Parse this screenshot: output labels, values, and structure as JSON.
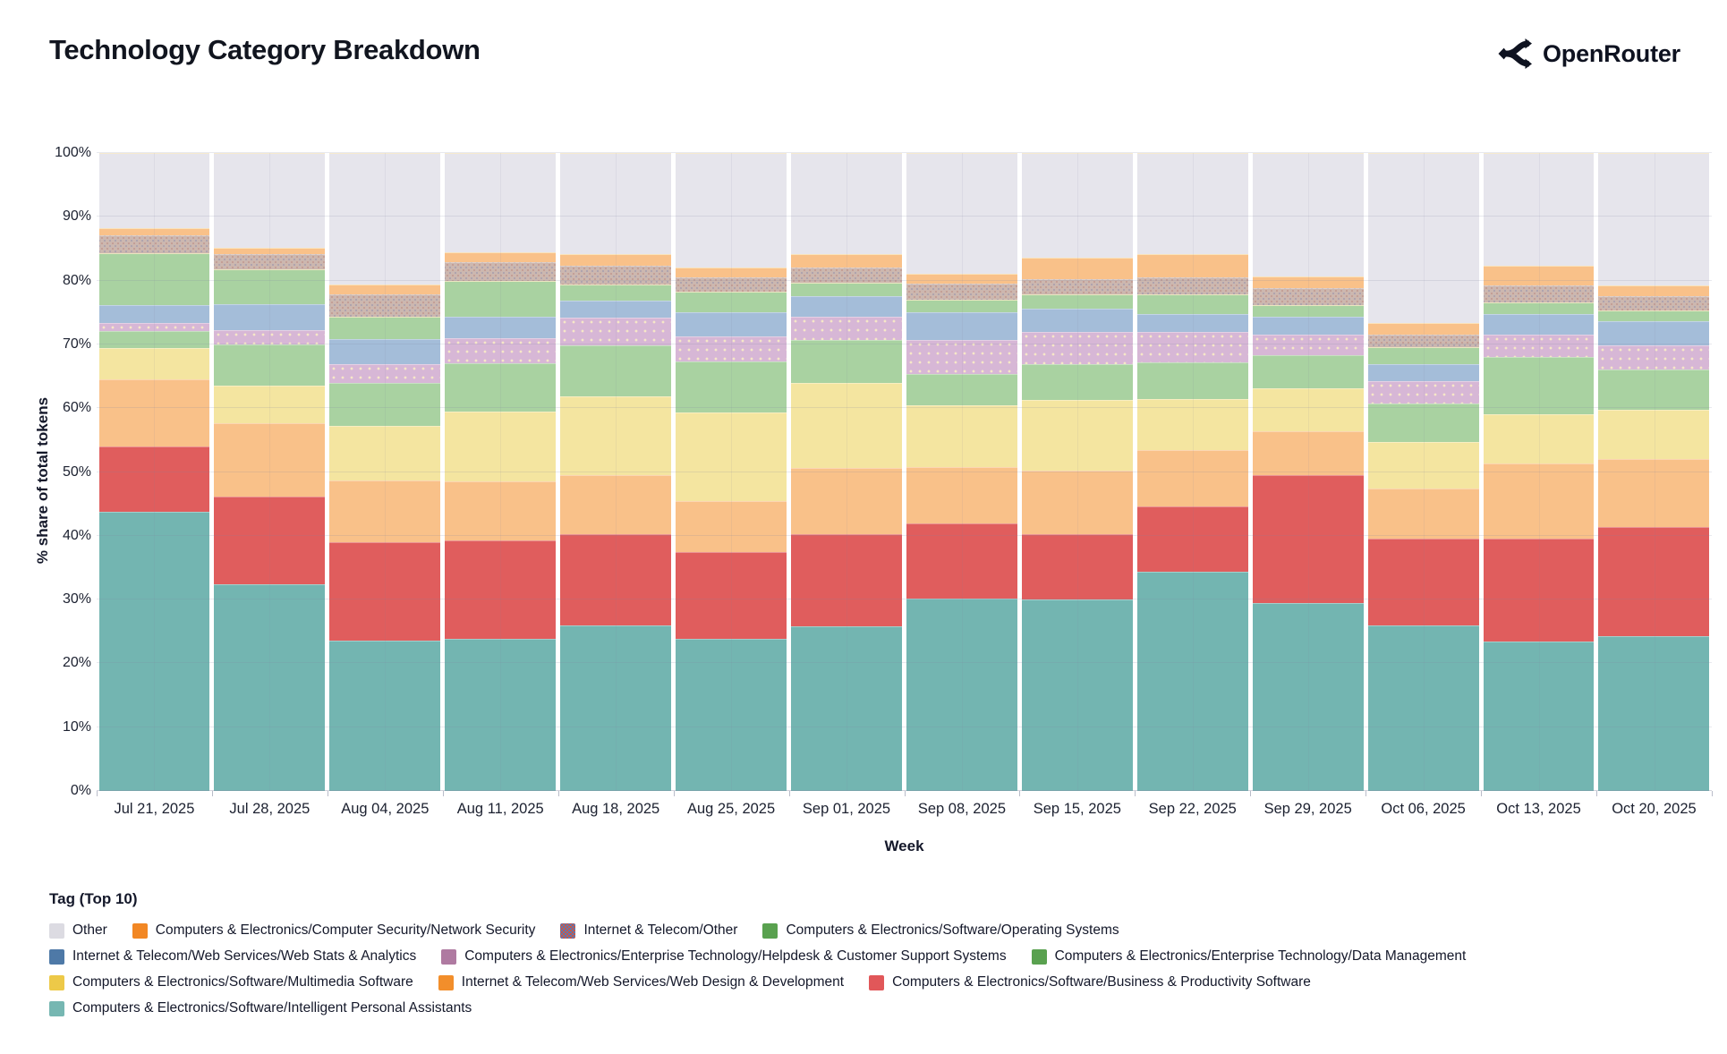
{
  "header": {
    "title": "Technology Category Breakdown",
    "brand": "OpenRouter"
  },
  "chart_data": {
    "type": "bar",
    "subtype": "stacked-100-percent",
    "title": "Technology Category Breakdown",
    "xlabel": "Week",
    "ylabel": "% share of total tokens",
    "legend_title": "Tag (Top 10)",
    "ylim": [
      0,
      100
    ],
    "grid": true,
    "y_ticks": [
      "0%",
      "10%",
      "20%",
      "30%",
      "40%",
      "50%",
      "60%",
      "70%",
      "80%",
      "90%",
      "100%"
    ],
    "categories": [
      "Jul 21, 2025",
      "Jul 28, 2025",
      "Aug 04, 2025",
      "Aug 11, 2025",
      "Aug 18, 2025",
      "Aug 25, 2025",
      "Sep 01, 2025",
      "Sep 08, 2025",
      "Sep 15, 2025",
      "Sep 22, 2025",
      "Sep 29, 2025",
      "Oct 06, 2025",
      "Oct 13, 2025",
      "Oct 20, 2025"
    ],
    "series": [
      {
        "name": "Other",
        "legend_color": "#dcdbe2",
        "bar_color": "#e6e5ec",
        "css": "other",
        "values": [
          11.8,
          14.8,
          20.6,
          15.5,
          15.9,
          17.9,
          15.9,
          18.9,
          16.4,
          15.8,
          19.4,
          26.7,
          17.7,
          20.8
        ]
      },
      {
        "name": "Computers & Electronics/Computer Security/Network Security",
        "legend_color": "#f28724",
        "bar_color": "#f9c189",
        "css": "netsec",
        "values": [
          1.1,
          1.1,
          1.6,
          1.6,
          1.7,
          1.6,
          2.0,
          1.5,
          3.3,
          3.7,
          1.8,
          1.8,
          3.1,
          1.6
        ]
      },
      {
        "name": "Internet & Telecom/Other",
        "legend_color": "#9c6f66",
        "bar_color": "#ccb7af",
        "css": "itother",
        "legend_pattern": true,
        "values": [
          2.8,
          2.3,
          3.4,
          2.9,
          3.0,
          2.2,
          2.5,
          2.6,
          2.4,
          2.7,
          2.7,
          1.9,
          2.6,
          2.3
        ]
      },
      {
        "name": "Computers & Electronics/Software/Operating Systems",
        "legend_color": "#59a14f",
        "bar_color": "#a9d2a1",
        "css": "os",
        "values": [
          8.1,
          5.5,
          3.5,
          5.6,
          2.6,
          3.3,
          2.1,
          1.9,
          2.3,
          3.0,
          1.7,
          2.7,
          1.9,
          1.7
        ]
      },
      {
        "name": "Internet & Telecom/Web Services/Web Stats & Analytics",
        "legend_color": "#4e79a7",
        "bar_color": "#a4bdd9",
        "css": "webstats",
        "values": [
          2.8,
          4.0,
          4.0,
          3.4,
          2.6,
          3.7,
          3.1,
          4.4,
          3.7,
          2.9,
          2.9,
          2.7,
          3.2,
          3.7
        ]
      },
      {
        "name": "Computers & Electronics/Enterprise Technology/Helpdesk & Customer Support Systems",
        "legend_color": "#af7aa1",
        "bar_color": "#d7b7d6",
        "css": "helpdesk",
        "values": [
          1.3,
          2.3,
          3.0,
          4.0,
          4.4,
          4.0,
          3.7,
          5.3,
          5.0,
          4.7,
          3.2,
          3.4,
          3.5,
          3.9
        ]
      },
      {
        "name": "Computers & Electronics/Enterprise Technology/Data Management",
        "legend_color": "#59a14f",
        "bar_color": "#a9d2a1",
        "css": "datamgmt",
        "values": [
          2.7,
          6.4,
          6.7,
          7.5,
          7.9,
          8.0,
          6.7,
          4.9,
          5.6,
          5.7,
          5.2,
          6.1,
          9.0,
          6.2
        ]
      },
      {
        "name": "Computers & Electronics/Software/Multimedia Software",
        "legend_color": "#edc948",
        "bar_color": "#f4e5a0",
        "css": "multimedia",
        "values": [
          4.9,
          5.9,
          8.5,
          11.0,
          12.4,
          13.8,
          13.3,
          9.7,
          11.1,
          8.0,
          6.7,
          7.3,
          7.6,
          7.7
        ]
      },
      {
        "name": "Internet & Telecom/Web Services/Web Design & Development",
        "legend_color": "#f28e2b",
        "bar_color": "#f9c189",
        "css": "webdesign",
        "values": [
          10.5,
          11.5,
          9.7,
          9.2,
          9.2,
          8.0,
          10.5,
          8.9,
          10.0,
          8.9,
          6.9,
          7.9,
          11.9,
          10.7
        ]
      },
      {
        "name": "Computers & Electronics/Software/Business & Productivity Software",
        "legend_color": "#e15759",
        "bar_color": "#e05d5d",
        "css": "bizprod",
        "values": [
          10.3,
          13.8,
          15.4,
          15.4,
          14.3,
          13.6,
          14.4,
          11.8,
          10.2,
          10.2,
          20.1,
          13.5,
          16.1,
          17.1
        ]
      },
      {
        "name": "Computers & Electronics/Software/Intelligent Personal Assistants",
        "legend_color": "#76b7b2",
        "bar_color": "#73b5b1",
        "css": "ipa",
        "values": [
          43.7,
          32.4,
          23.6,
          23.9,
          26.0,
          23.9,
          25.8,
          30.1,
          30.0,
          34.4,
          29.4,
          26.0,
          23.4,
          24.3
        ]
      }
    ],
    "stack_order_bottom_to_top": [
      10,
      9,
      8,
      7,
      6,
      5,
      4,
      3,
      2,
      1,
      0
    ],
    "legend_position": "bottom"
  }
}
